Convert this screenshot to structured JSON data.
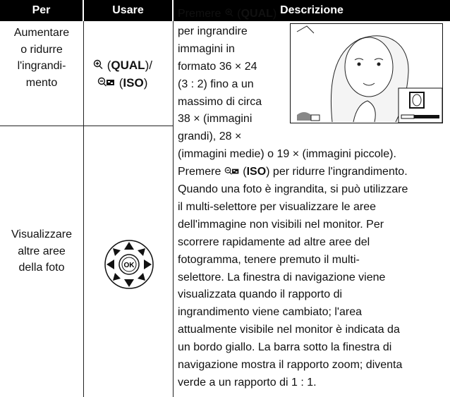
{
  "table": {
    "header": [
      "Per",
      "Usare",
      "Descrizione"
    ],
    "rows": [
      {
        "per": [
          "Aumentare",
          "o ridurre",
          "l'ingrandi-",
          "mento"
        ],
        "usare": [
          "(",
          "QUAL",
          ")/",
          "(",
          "ISO",
          ")"
        ]
      },
      {
        "per": [
          "Visualizzare",
          "altre aree",
          "della foto"
        ]
      }
    ],
    "description": [
      [
        "Premere",
        "(",
        "QUAL",
        ")"
      ],
      "per ingrandire",
      "immagini in",
      "formato 36 × 24",
      "(3 : 2) fino a un",
      "massimo di circa",
      "38 × (immagini",
      "grandi), 28 ×",
      "(immagini medie) o 19 × (immagini piccole).",
      [
        "Premere",
        "(",
        "ISO",
        ") per ridurre l'ingrandimento."
      ],
      "Quando una foto è ingrandita, si può utilizzare",
      "il multi-selettore per visualizzare le aree",
      "dell'immagine non visibili nel monitor.  Per",
      "scorrere rapidamente ad altre aree del",
      "fotogramma, tenere premuto il multi-",
      "selettore. La finestra di navigazione viene",
      "visualizzata quando il rapporto di",
      "ingrandimento viene cambiato; l'area",
      "attualmente visibile nel monitor è indicata da",
      "un bordo giallo.  La barra sotto la finestra di",
      "navigazione mostra il rapporto zoom; diventa",
      "verde a un rapporto di 1 : 1."
    ]
  }
}
